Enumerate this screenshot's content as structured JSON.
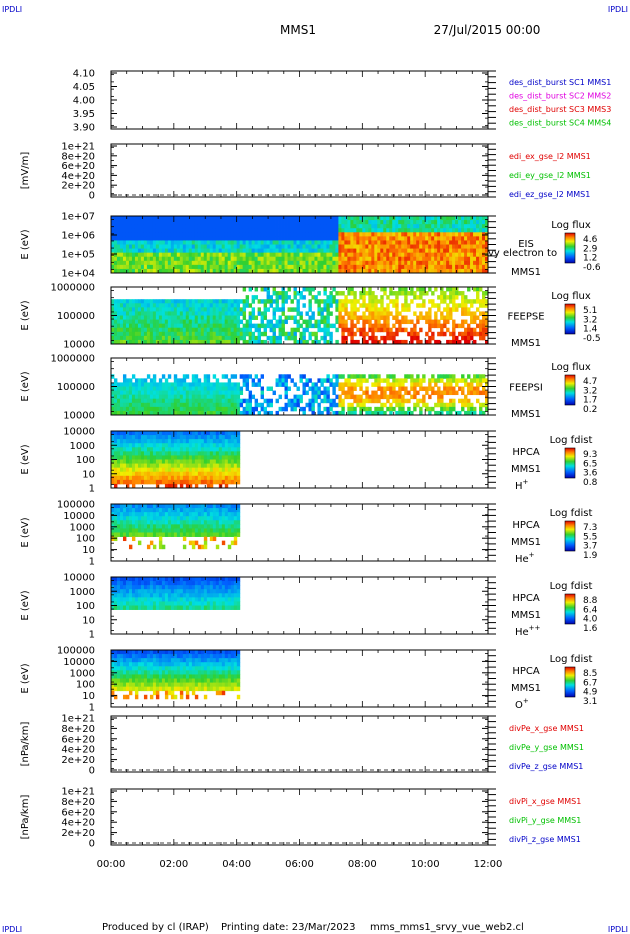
{
  "header": {
    "corner_label": "IPDLI",
    "mission": "MMS1",
    "date": "27/Jul/2015 00:00"
  },
  "footer": {
    "produced_by": "Produced by cl (IRAP)",
    "printing_date": "Printing date: 23/Mar/2023",
    "filename": "mms_mms1_srvy_vue_web2.cl"
  },
  "colors": {
    "black": "#000000",
    "blue": "#0000c8",
    "magenta": "#e000e0",
    "red": "#e00000",
    "green": "#00c000"
  },
  "chart_data": {
    "type": "heatmap",
    "x_tick_labels": [
      "00:00",
      "02:00",
      "04:00",
      "06:00",
      "08:00",
      "10:00",
      "12:00"
    ],
    "x_range_hours": [
      0,
      12
    ],
    "panels": [
      {
        "id": "des-dist-burst",
        "kind": "line",
        "ylabel": "",
        "y_tick_labels": [
          "4.10",
          "4.05",
          "4.00",
          "3.95",
          "3.90"
        ],
        "legend": [
          {
            "text": "des_dist_burst SC1 MMS1",
            "color": "#0000c8"
          },
          {
            "text": "des_dist_burst SC2 MMS2",
            "color": "#e000e0"
          },
          {
            "text": "des_dist_burst SC3 MMS3",
            "color": "#e00000"
          },
          {
            "text": "des_dist_burst SC4 MMS4",
            "color": "#00c000"
          }
        ]
      },
      {
        "id": "edi-e-field",
        "kind": "line",
        "ylabel": "[mV/m]",
        "y_tick_labels": [
          "1e+21",
          "8e+20",
          "6e+20",
          "4e+20",
          "2e+20",
          "0"
        ],
        "dashed_zero": true,
        "legend": [
          {
            "text": "edi_ex_gse_l2 MMS1",
            "color": "#e00000"
          },
          {
            "text": "edi_ey_gse_l2 MMS1",
            "color": "#00c000"
          },
          {
            "text": "edi_ez_gse_l2 MMS1",
            "color": "#0000c8"
          }
        ]
      },
      {
        "id": "eis-electron",
        "kind": "spectrogram",
        "ylabel": "E (eV)",
        "y_tick_labels": [
          "1e+07",
          "1e+06",
          "1e+05",
          "1e+04"
        ],
        "labels": [
          "EIS",
          "vy electron to",
          "MMS1"
        ],
        "colorbar": {
          "title": "Log flux",
          "ticks": [
            "4.6",
            "2.9",
            "1.2",
            "-0.6"
          ]
        },
        "data_end_hours": 12,
        "value_range": [
          -0.6,
          4.6
        ]
      },
      {
        "id": "feeps-electron",
        "kind": "spectrogram",
        "ylabel": "E (eV)",
        "y_tick_labels": [
          "1000000",
          "100000",
          "10000"
        ],
        "labels": [
          "FEEPSE",
          "MMS1"
        ],
        "colorbar": {
          "title": "Log flux",
          "ticks": [
            "5.1",
            "3.2",
            "1.4",
            "-0.5"
          ]
        },
        "data_end_hours": 12,
        "value_range": [
          -0.5,
          5.1
        ]
      },
      {
        "id": "feeps-ion",
        "kind": "spectrogram",
        "ylabel": "E (eV)",
        "y_tick_labels": [
          "1000000",
          "100000",
          "10000"
        ],
        "labels": [
          "FEEPSI",
          "MMS1"
        ],
        "colorbar": {
          "title": "Log flux",
          "ticks": [
            "4.7",
            "3.2",
            "1.7",
            "0.2"
          ]
        },
        "data_end_hours": 12,
        "value_range": [
          0.2,
          4.7
        ]
      },
      {
        "id": "hpca-h",
        "kind": "spectrogram",
        "ylabel": "E (eV)",
        "y_tick_labels": [
          "10000",
          "1000",
          "100",
          "10",
          "1"
        ],
        "labels": [
          "HPCA",
          "MMS1",
          "H"
        ],
        "species_sup": "+",
        "colorbar": {
          "title": "Log fdist",
          "ticks": [
            "9.3",
            "6.5",
            "3.6",
            "0.8"
          ]
        },
        "data_end_hours": 4.1,
        "value_range": [
          0.8,
          9.3
        ]
      },
      {
        "id": "hpca-he",
        "kind": "spectrogram",
        "ylabel": "E (eV)",
        "y_tick_labels": [
          "100000",
          "10000",
          "1000",
          "100",
          "10",
          "1"
        ],
        "labels": [
          "HPCA",
          "MMS1",
          "He"
        ],
        "species_sup": "+",
        "colorbar": {
          "title": "Log fdist",
          "ticks": [
            "7.3",
            "5.5",
            "3.7",
            "1.9"
          ]
        },
        "data_end_hours": 4.1,
        "value_range": [
          1.9,
          7.3
        ]
      },
      {
        "id": "hpca-he2",
        "kind": "spectrogram",
        "ylabel": "E (eV)",
        "y_tick_labels": [
          "10000",
          "1000",
          "100",
          "10",
          "1"
        ],
        "labels": [
          "HPCA",
          "MMS1",
          "He"
        ],
        "species_sup": "++",
        "colorbar": {
          "title": "Log fdist",
          "ticks": [
            "8.8",
            "6.4",
            "4.0",
            "1.6"
          ]
        },
        "data_end_hours": 4.1,
        "value_range": [
          1.6,
          8.8
        ]
      },
      {
        "id": "hpca-o",
        "kind": "spectrogram",
        "ylabel": "E (eV)",
        "y_tick_labels": [
          "100000",
          "10000",
          "1000",
          "100",
          "10",
          "1"
        ],
        "labels": [
          "HPCA",
          "MMS1",
          "O"
        ],
        "species_sup": "+",
        "colorbar": {
          "title": "Log fdist",
          "ticks": [
            "8.5",
            "6.7",
            "4.9",
            "3.1"
          ]
        },
        "data_end_hours": 4.1,
        "value_range": [
          3.1,
          8.5
        ]
      },
      {
        "id": "divpe",
        "kind": "line",
        "ylabel": "[nPa/km]",
        "y_tick_labels": [
          "1e+21",
          "8e+20",
          "6e+20",
          "4e+20",
          "2e+20",
          "0"
        ],
        "dashed_zero": true,
        "legend": [
          {
            "text": "divPe_x_gse MMS1",
            "color": "#e00000"
          },
          {
            "text": "divPe_y_gse MMS1",
            "color": "#00c000"
          },
          {
            "text": "divPe_z_gse MMS1",
            "color": "#0000c8"
          }
        ]
      },
      {
        "id": "divpi",
        "kind": "line",
        "ylabel": "[nPa/km]",
        "y_tick_labels": [
          "1e+21",
          "8e+20",
          "6e+20",
          "4e+20",
          "2e+20",
          "0"
        ],
        "dashed_zero": true,
        "legend": [
          {
            "text": "divPi_x_gse MMS1",
            "color": "#e00000"
          },
          {
            "text": "divPi_y_gse MMS1",
            "color": "#00c000"
          },
          {
            "text": "divPi_z_gse MMS1",
            "color": "#0000c8"
          }
        ]
      }
    ]
  }
}
